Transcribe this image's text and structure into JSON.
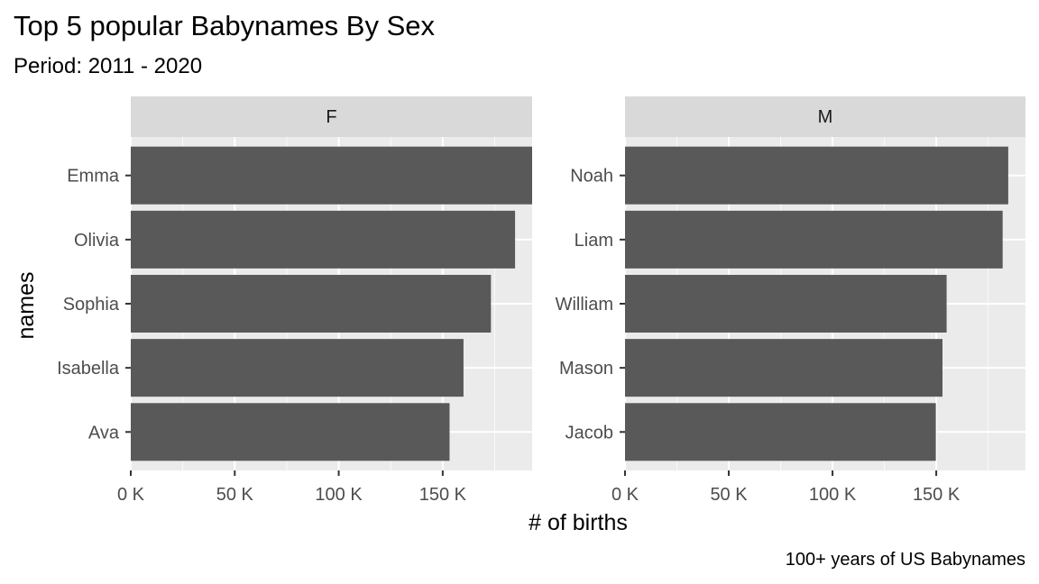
{
  "chart_data": {
    "type": "bar",
    "orientation": "horizontal",
    "title": "Top 5 popular Babynames By Sex",
    "subtitle": "Period: 2011 - 2020",
    "xlabel": "# of births",
    "ylabel": "names",
    "caption": "100+ years of US Babynames",
    "xlim": [
      0,
      193000
    ],
    "x_ticks": [
      0,
      50000,
      100000,
      150000
    ],
    "x_tick_labels": [
      "0 K",
      "50 K",
      "100 K",
      "150 K"
    ],
    "grid": true,
    "bar_color": "#595959",
    "panel_background": "#ebebeb",
    "strip_background": "#d9d9d9",
    "facets": [
      {
        "label": "F",
        "categories": [
          "Emma",
          "Olivia",
          "Sophia",
          "Isabella",
          "Ava"
        ],
        "values": [
          194000,
          184800,
          173200,
          160000,
          153300
        ]
      },
      {
        "label": "M",
        "categories": [
          "Noah",
          "Liam",
          "William",
          "Mason",
          "Jacob"
        ],
        "values": [
          184700,
          182000,
          155000,
          153000,
          149800
        ]
      }
    ]
  }
}
